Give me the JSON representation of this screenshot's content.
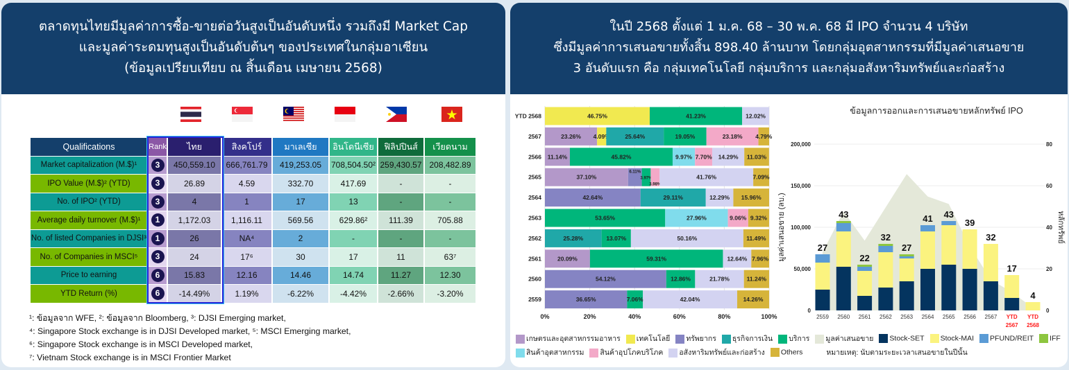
{
  "left_panel": {
    "title_lines": [
      "ตลาดทุนไทยมีมูลค่าการซื้อ-ขายต่อวันสูงเป็นอันดับหนึ่ง รวมถึงมี Market Cap",
      "และมูลค่าระดมทุนสูงเป็นอันดับต้นๆ ของประเทศในกลุ่มอาเซียน",
      "(ข้อมูลเปรียบเทียบ ณ สิ้นเดือน เมษายน 2568)"
    ],
    "flags": [
      "thailand-flag",
      "singapore-flag",
      "malaysia-flag",
      "indonesia-flag",
      "philippines-flag",
      "vietnam-flag"
    ],
    "table": {
      "headers": [
        "Qualifications",
        "Rank",
        "ไทย",
        "สิงคโปร์",
        "มาเลเซีย",
        "อินโดนีเซีย",
        "ฟิลิปปินส์",
        "เวียดนาม"
      ],
      "rows": [
        {
          "label": "Market capitalization (M.$)¹",
          "rank": "3",
          "values": [
            "450,559.10",
            "666,761.79",
            "419,253.05",
            "708,504.50²",
            "259,430.57",
            "208,482.89"
          ]
        },
        {
          "label": "IPO Value (M.$)² (YTD)",
          "rank": "3",
          "values": [
            "26.89",
            "4.59",
            "332.70",
            "417.69",
            "-",
            "-"
          ]
        },
        {
          "label": "No. of IPO² (YTD)",
          "rank": "3",
          "values": [
            "4",
            "1",
            "17",
            "13",
            "-",
            "-"
          ]
        },
        {
          "label": "Average daily turnover (M.$)¹",
          "rank": "1",
          "values": [
            "1,172.03",
            "1,116.11",
            "569.56",
            "629.86²",
            "111.39",
            "705.88"
          ]
        },
        {
          "label": "No. of listed Companies in DJSI³",
          "rank": "1",
          "values": [
            "26",
            "NA⁴",
            "2",
            "-",
            "-",
            "-"
          ]
        },
        {
          "label": "No. of Companies in MSCI⁵",
          "rank": "3",
          "values": [
            "24",
            "17⁶",
            "30",
            "17",
            "11",
            "63⁷"
          ]
        },
        {
          "label": "Price to earning",
          "rank": "6",
          "values": [
            "15.83",
            "12.16",
            "14.46",
            "14.74",
            "11.27",
            "12.30"
          ]
        },
        {
          "label": "YTD Return (%)",
          "rank": "6",
          "values": [
            "-14.49%",
            "1.19%",
            "-6.22%",
            "-4.42%",
            "-2.66%",
            "-3.20%"
          ]
        }
      ]
    },
    "footnotes": [
      "¹: ข้อมูลจาก WFE, ²: ข้อมูลจาก Bloomberg, ³: DJSI Emerging market,",
      "⁴: Singapore Stock exchange is in DJSI Developed market, ⁵: MSCI Emerging market,",
      "⁶: Singapore Stock exchange is in MSCI Developed market,",
      "⁷: Vietnam Stock exchange is in MSCI Frontier Market"
    ]
  },
  "right_panel": {
    "title_lines": [
      "ในปี 2568 ตั้งแต่ 1 ม.ค. 68 – 30 พ.ค. 68 มี IPO จำนวน 4 บริษัท",
      "ซึ่งมีมูลค่าการเสนอขายทั้งสิ้น 898.40 ล้านบาท โดยกลุ่มอุตสาหกรรมที่มีมูลค่าเสนอขาย",
      "3 อันดับแรก คือ กลุ่มเทคโนโลยี กลุ่มบริการ และกลุ่มอสังหาริมทรัพย์และก่อสร้าง"
    ],
    "note": "หมายเหตุ: นับตามระยะเวลาเสนอขายในปีนั้น"
  },
  "chart_data": [
    {
      "type": "bar",
      "orientation": "horizontal",
      "stacked": "percent",
      "categories": [
        "YTD 2568",
        "2567",
        "2566",
        "2565",
        "2564",
        "2563",
        "2562",
        "2561",
        "2560",
        "2559"
      ],
      "xticks": [
        "0%",
        "20%",
        "40%",
        "60%",
        "80%",
        "100%"
      ],
      "xlim": [
        0,
        100
      ],
      "sectors": [
        {
          "name": "เกษตรและอุตสาหกรรมอาหาร",
          "color": "#b398c9"
        },
        {
          "name": "เทคโนโลยี",
          "color": "#f1e950"
        },
        {
          "name": "ทรัพยากร",
          "color": "#8584c3"
        },
        {
          "name": "ธุรกิจการเงิน",
          "color": "#20a8a8"
        },
        {
          "name": "บริการ",
          "color": "#00b67b"
        },
        {
          "name": "สินค้าอุตสาหกรรม",
          "color": "#80dcec"
        },
        {
          "name": "สินค้าอุปโภคบริโภค",
          "color": "#f3a9c8"
        },
        {
          "name": "อสังหาริมทรัพย์และก่อสร้าง",
          "color": "#d3d3f1"
        },
        {
          "name": "Others",
          "color": "#d6b43a"
        }
      ],
      "rows": [
        [
          [
            1,
            46.75
          ],
          [
            4,
            41.23
          ],
          [
            7,
            12.02
          ]
        ],
        [
          [
            0,
            23.26
          ],
          [
            1,
            4.09
          ],
          [
            3,
            25.64
          ],
          [
            4,
            19.05
          ],
          [
            6,
            23.18
          ],
          [
            8,
            4.79
          ]
        ],
        [
          [
            0,
            11.14
          ],
          [
            4,
            45.82
          ],
          [
            5,
            9.97
          ],
          [
            6,
            7.7
          ],
          [
            7,
            14.29
          ],
          [
            8,
            11.03
          ]
        ],
        [
          [
            0,
            37.1
          ],
          [
            2,
            6.11
          ],
          [
            4,
            3.97
          ],
          [
            6,
            3.98
          ],
          [
            7,
            41.76
          ],
          [
            8,
            7.09
          ]
        ],
        [
          [
            2,
            42.64
          ],
          [
            3,
            29.11
          ],
          [
            7,
            12.29
          ],
          [
            8,
            15.96
          ]
        ],
        [
          [
            4,
            53.65
          ],
          [
            5,
            27.96
          ],
          [
            6,
            9.06
          ],
          [
            8,
            9.32
          ]
        ],
        [
          [
            3,
            25.28
          ],
          [
            4,
            13.07
          ],
          [
            7,
            50.16
          ],
          [
            8,
            11.49
          ]
        ],
        [
          [
            0,
            20.09
          ],
          [
            4,
            59.31
          ],
          [
            7,
            12.64
          ],
          [
            8,
            7.96
          ]
        ],
        [
          [
            2,
            54.12
          ],
          [
            4,
            12.86
          ],
          [
            7,
            21.78
          ],
          [
            8,
            11.24
          ]
        ],
        [
          [
            2,
            36.65
          ],
          [
            4,
            7.06
          ],
          [
            7,
            42.04
          ],
          [
            8,
            14.26
          ]
        ]
      ]
    },
    {
      "type": "bar",
      "stacked": true,
      "secondary": "area",
      "title": "ข้อมูลการออกและการเสนอขายหลักทรัพย์ IPO",
      "ylabel": "มูลค่าเสนอขาย (ลบ.)",
      "y2label": "หลักทรัพย์",
      "ylim": [
        0,
        200000
      ],
      "y2lim": [
        0,
        80
      ],
      "yticks": [
        "0",
        "50,000",
        "100,000",
        "150,000",
        "200,000"
      ],
      "y2ticks": [
        "0",
        "20",
        "40",
        "60",
        "80"
      ],
      "categories": [
        "2559",
        "2560",
        "2561",
        "2562",
        "2563",
        "2564",
        "2565",
        "2566",
        "2567",
        "YTD 2567",
        "YTD 2568"
      ],
      "highlight_categories": [
        "YTD 2567",
        "YTD 2568"
      ],
      "highlight_color": "#ff1a1a",
      "totals": [
        27,
        43,
        22,
        32,
        27,
        41,
        43,
        39,
        32,
        17,
        4
      ],
      "series": [
        {
          "name": "Stock-SET",
          "color": "#04345f",
          "values": [
            10,
            21,
            7,
            11,
            14,
            20,
            22,
            20,
            14,
            6,
            0
          ]
        },
        {
          "name": "Stock-MAI",
          "color": "#fbf37f",
          "values": [
            13,
            17,
            12,
            17,
            11,
            18,
            19,
            19,
            18,
            11,
            4
          ]
        },
        {
          "name": "PFUND/REIT",
          "color": "#5b9bd5",
          "values": [
            4,
            4,
            2,
            3,
            1,
            3,
            2,
            0,
            0,
            0,
            0
          ]
        },
        {
          "name": "IFF",
          "color": "#8dc63f",
          "values": [
            0,
            1,
            1,
            1,
            1,
            0,
            0,
            0,
            0,
            0,
            0
          ]
        }
      ],
      "area": {
        "name": "มูลค่าเสนอขาย",
        "color": "#e4e8d9",
        "values": [
          70000,
          119000,
          84000,
          124000,
          164000,
          137000,
          128000,
          77000,
          37000,
          22000,
          3000
        ]
      }
    }
  ]
}
